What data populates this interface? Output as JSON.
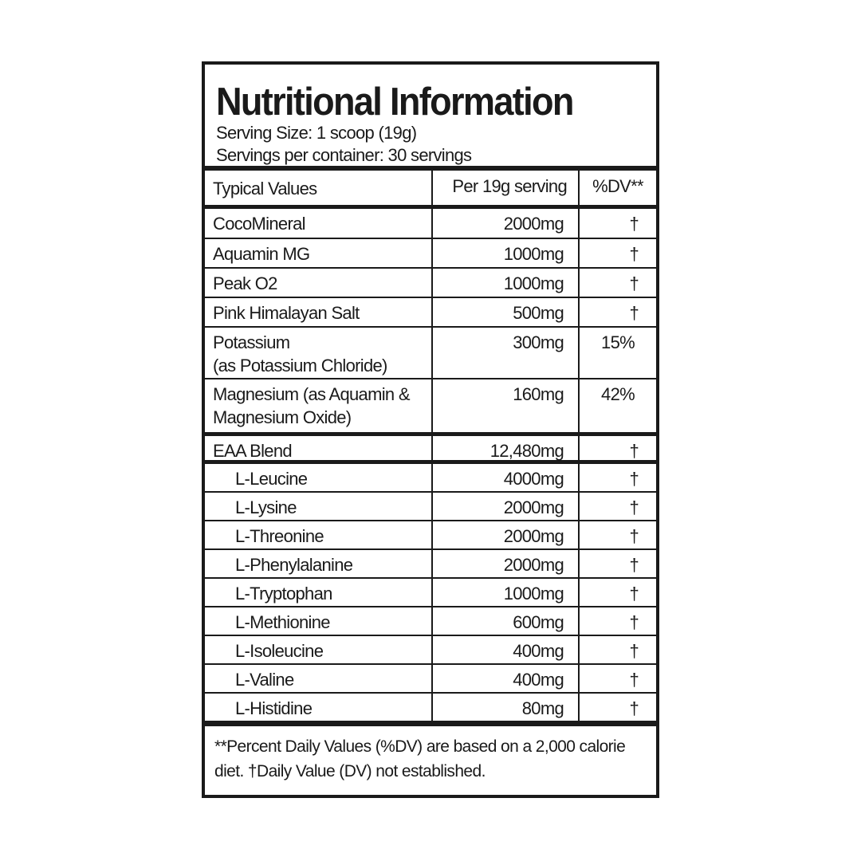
{
  "header": {
    "title": "Nutritional Information",
    "serving_size": "Serving Size: 1 scoop (19g)",
    "servings_per_container": "Servings per container: 30 servings"
  },
  "columns": [
    "Typical Values",
    "Per 19g serving",
    "%DV**"
  ],
  "minerals": [
    {
      "name": "CocoMineral",
      "amount": "2000mg",
      "dv": "†"
    },
    {
      "name": "Aquamin MG",
      "amount": "1000mg",
      "dv": "†"
    },
    {
      "name": "Peak O2",
      "amount": "1000mg",
      "dv": "†"
    },
    {
      "name": "Pink Himalayan Salt",
      "amount": "500mg",
      "dv": "†"
    },
    {
      "name": "Potassium\n(as Potassium Chloride)",
      "amount": "300mg",
      "dv": "15%"
    },
    {
      "name": "Magnesium (as Aquamin &\nMagnesium Oxide)",
      "amount": "160mg",
      "dv": "42%"
    }
  ],
  "blend": {
    "name": "EAA Blend",
    "amount": "12,480mg",
    "dv": "†"
  },
  "amino_acids": [
    {
      "name": "L-Leucine",
      "amount": "4000mg",
      "dv": "†"
    },
    {
      "name": "L-Lysine",
      "amount": "2000mg",
      "dv": "†"
    },
    {
      "name": "L-Threonine",
      "amount": "2000mg",
      "dv": "†"
    },
    {
      "name": "L-Phenylalanine",
      "amount": "2000mg",
      "dv": "†"
    },
    {
      "name": "L-Tryptophan",
      "amount": "1000mg",
      "dv": "†"
    },
    {
      "name": "L-Methionine",
      "amount": "600mg",
      "dv": "†"
    },
    {
      "name": "L-Isoleucine",
      "amount": "400mg",
      "dv": "†"
    },
    {
      "name": "L-Valine",
      "amount": "400mg",
      "dv": "†"
    },
    {
      "name": "L-Histidine",
      "amount": "80mg",
      "dv": "†"
    }
  ],
  "footnote": "**Percent Daily Values (%DV) are based on a 2,000 calorie diet. †Daily Value (DV) not established."
}
